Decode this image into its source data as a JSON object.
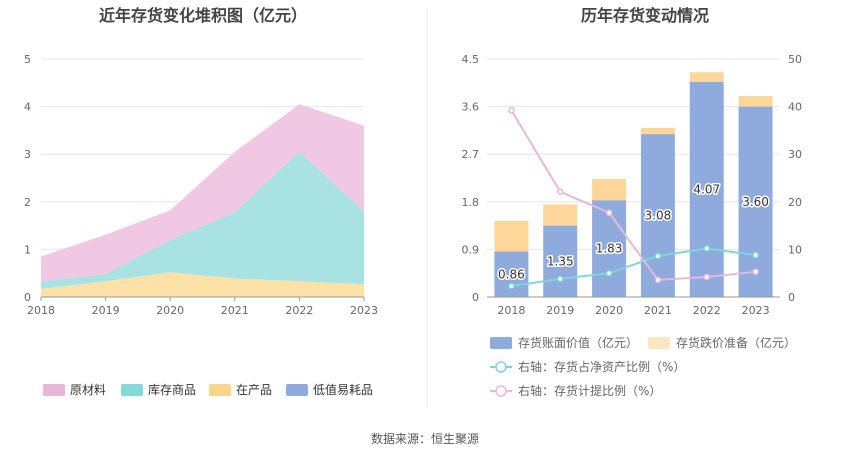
{
  "source_text": "数据来源：恒生聚源",
  "chart_data": [
    {
      "type": "area",
      "stacked": true,
      "title": "近年存货变化堆积图（亿元）",
      "x": [
        "2018",
        "2019",
        "2020",
        "2021",
        "2022",
        "2023"
      ],
      "ylim": [
        0,
        5
      ],
      "yticks": [
        "0",
        "1",
        "2",
        "3",
        "4",
        "5"
      ],
      "grid": true,
      "legend_position": "bottom",
      "series": [
        {
          "name": "低值易耗品",
          "color": "#8faadc",
          "values": [
            0,
            0,
            0,
            0,
            0,
            0
          ]
        },
        {
          "name": "在产品",
          "color": "#fde1a7",
          "values": [
            0.17,
            0.33,
            0.52,
            0.39,
            0.33,
            0.27
          ]
        },
        {
          "name": "库存商品",
          "color": "#a8e2e2",
          "values": [
            0.16,
            0.15,
            0.68,
            1.39,
            2.73,
            1.52
          ]
        },
        {
          "name": "原材料",
          "color": "#f0c8e3",
          "values": [
            0.52,
            0.83,
            0.62,
            1.27,
            0.99,
            1.81
          ]
        }
      ],
      "legend": [
        {
          "name": "原材料",
          "color": "#e9b5d9"
        },
        {
          "name": "库存商品",
          "color": "#85d8d8"
        },
        {
          "name": "在产品",
          "color": "#fcd58b"
        },
        {
          "name": "低值易耗品",
          "color": "#8faadc"
        }
      ]
    },
    {
      "type": "bar",
      "stacked": true,
      "title": "历年存货变动情况",
      "x": [
        "2018",
        "2019",
        "2020",
        "2021",
        "2022",
        "2023"
      ],
      "ylim": [
        0,
        4.5
      ],
      "yticks": [
        "0",
        "0.9",
        "1.8",
        "2.7",
        "3.6",
        "4.5"
      ],
      "y2lim": [
        0,
        50
      ],
      "y2ticks": [
        "0",
        "10",
        "20",
        "30",
        "40",
        "50"
      ],
      "grid": true,
      "legend_position": "bottom",
      "series": [
        {
          "name": "存货账面价值（亿元）",
          "color": "#8faadc",
          "values": [
            0.86,
            1.35,
            1.83,
            3.08,
            4.07,
            3.6
          ],
          "labels": [
            "0.86",
            "1.35",
            "1.83",
            "3.08",
            "4.07",
            "3.60"
          ]
        },
        {
          "name": "存货跌价准备（亿元）",
          "color": "#fdd79a",
          "values": [
            0.58,
            0.4,
            0.4,
            0.12,
            0.18,
            0.2
          ]
        }
      ],
      "lines": [
        {
          "name": "右轴：存货占净资产比例（%）",
          "color": "#7fd6d6",
          "axis": "right",
          "values": [
            2.3,
            3.8,
            5.0,
            8.6,
            10.2,
            8.8
          ]
        },
        {
          "name": "右轴：存货计提比例（%）",
          "color": "#e6b8dc",
          "axis": "right",
          "values": [
            39.2,
            22.1,
            17.7,
            3.6,
            4.2,
            5.3
          ]
        }
      ],
      "legend": [
        {
          "name": "存货账面价值（亿元）",
          "color": "#8faadc",
          "kind": "rect"
        },
        {
          "name": "存货跌价准备（亿元）",
          "color": "#fde7c2",
          "kind": "rect"
        },
        {
          "name": "右轴：存货占净资产比例（%）",
          "color": "#7fd6d6",
          "kind": "line"
        },
        {
          "name": "右轴：存货计提比例（%）",
          "color": "#e6b8dc",
          "kind": "line"
        }
      ]
    }
  ]
}
